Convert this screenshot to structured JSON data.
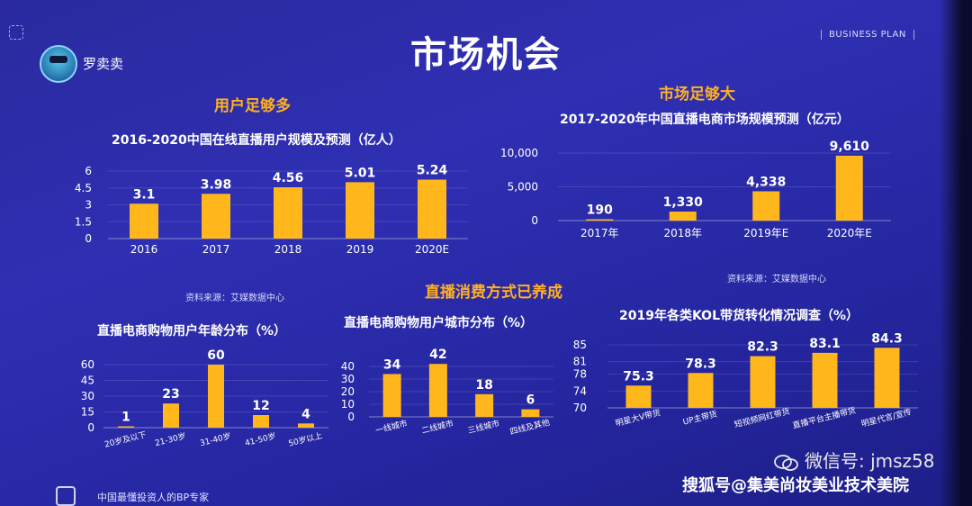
{
  "header": {
    "brand_name": "罗卖卖",
    "title": "市场机会",
    "tag": "BUSINESS PLAN"
  },
  "sections": {
    "users": "用户足够多",
    "market": "市场足够大",
    "consumption": "直播消费方式已养成"
  },
  "sources": {
    "left": "资料来源：艾媒数据中心",
    "right": "资料来源：艾媒数据中心"
  },
  "watermark": {
    "wechat": "微信号: jmsz58",
    "sohu": "搜狐号@集美尚妆美业技术美院"
  },
  "footer": {
    "text": "中国最懂投资人的BP专家"
  },
  "colors": {
    "bar": "#ffb71c",
    "background": "#2a2aa8"
  },
  "chart_data": [
    {
      "type": "bar",
      "title": "2016-2020中国在线直播用户规模及预测（亿人）",
      "categories": [
        "2016",
        "2017",
        "2018",
        "2019",
        "2020E"
      ],
      "values": [
        3.1,
        3.98,
        4.56,
        5.01,
        5.24
      ],
      "data_labels": [
        "3.1",
        "3.98",
        "4.56",
        "5.01",
        "5.24"
      ],
      "ylim": [
        0,
        6
      ],
      "yticks": [
        "0",
        "1.5",
        "3",
        "4.5",
        "6"
      ]
    },
    {
      "type": "bar",
      "title": "2017-2020年中国直播电商市场规模预测（亿元）",
      "categories": [
        "2017年",
        "2018年",
        "2019年E",
        "2020年E"
      ],
      "values": [
        190,
        1330,
        4338,
        9610
      ],
      "data_labels": [
        "190",
        "1,330",
        "4,338",
        "9,610"
      ],
      "ylim": [
        0,
        10000
      ],
      "yticks": [
        "0",
        "5,000",
        "10,000"
      ]
    },
    {
      "type": "bar",
      "title": "直播电商购物用户年龄分布（%）",
      "categories": [
        "20岁及以下",
        "21-30岁",
        "31-40岁",
        "41-50岁",
        "50岁以上"
      ],
      "values": [
        1,
        23,
        60,
        12,
        4
      ],
      "data_labels": [
        "1",
        "23",
        "60",
        "12",
        "4"
      ],
      "ylim": [
        0,
        60
      ],
      "yticks": [
        "0",
        "15",
        "30",
        "45",
        "60"
      ]
    },
    {
      "type": "bar",
      "title": "直播电商购物用户城市分布（%）",
      "categories": [
        "一线城市",
        "二线城市",
        "三线城市",
        "四线及其他"
      ],
      "values": [
        34,
        42,
        18,
        6
      ],
      "data_labels": [
        "34",
        "42",
        "18",
        "6"
      ],
      "ylim": [
        0,
        45
      ],
      "yticks": [
        "0",
        "10",
        "20",
        "30",
        "40"
      ]
    },
    {
      "type": "bar",
      "title": "2019年各类KOL带货转化情况调查（%）",
      "categories": [
        "明星大V带货",
        "UP主带货",
        "短视频网红带货",
        "直播平台主播带货",
        "明星代言/宣传"
      ],
      "values": [
        75.3,
        78.3,
        82.3,
        83.1,
        84.3
      ],
      "data_labels": [
        "75.3",
        "78.3",
        "82.3",
        "83.1",
        "84.3"
      ],
      "ylim": [
        70,
        85
      ],
      "yticks": [
        "70",
        "74",
        "78",
        "81",
        "85"
      ]
    }
  ]
}
